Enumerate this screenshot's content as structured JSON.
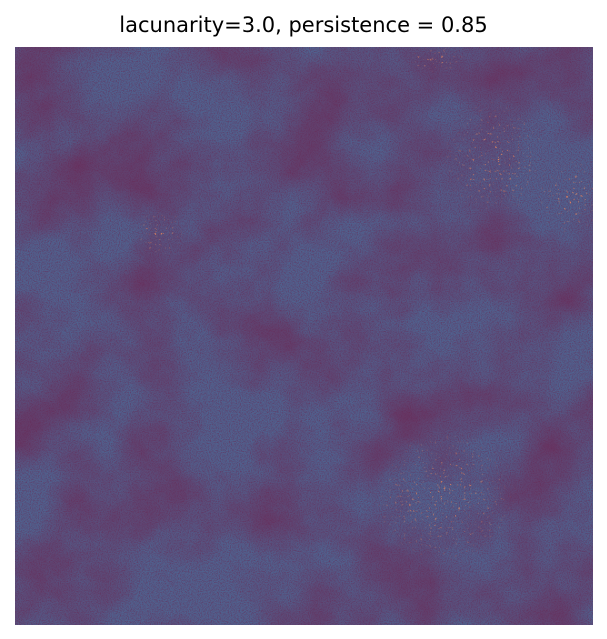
{
  "figure": {
    "title": "lacunarity=3.0, persistence = 0.85"
  },
  "image": {
    "subject": "fractal noise texture",
    "colors": {
      "dark": "#6b2f5d",
      "mid": "#6d3b66",
      "cool": "#4b5f8a",
      "hot": "#e9865a"
    }
  }
}
